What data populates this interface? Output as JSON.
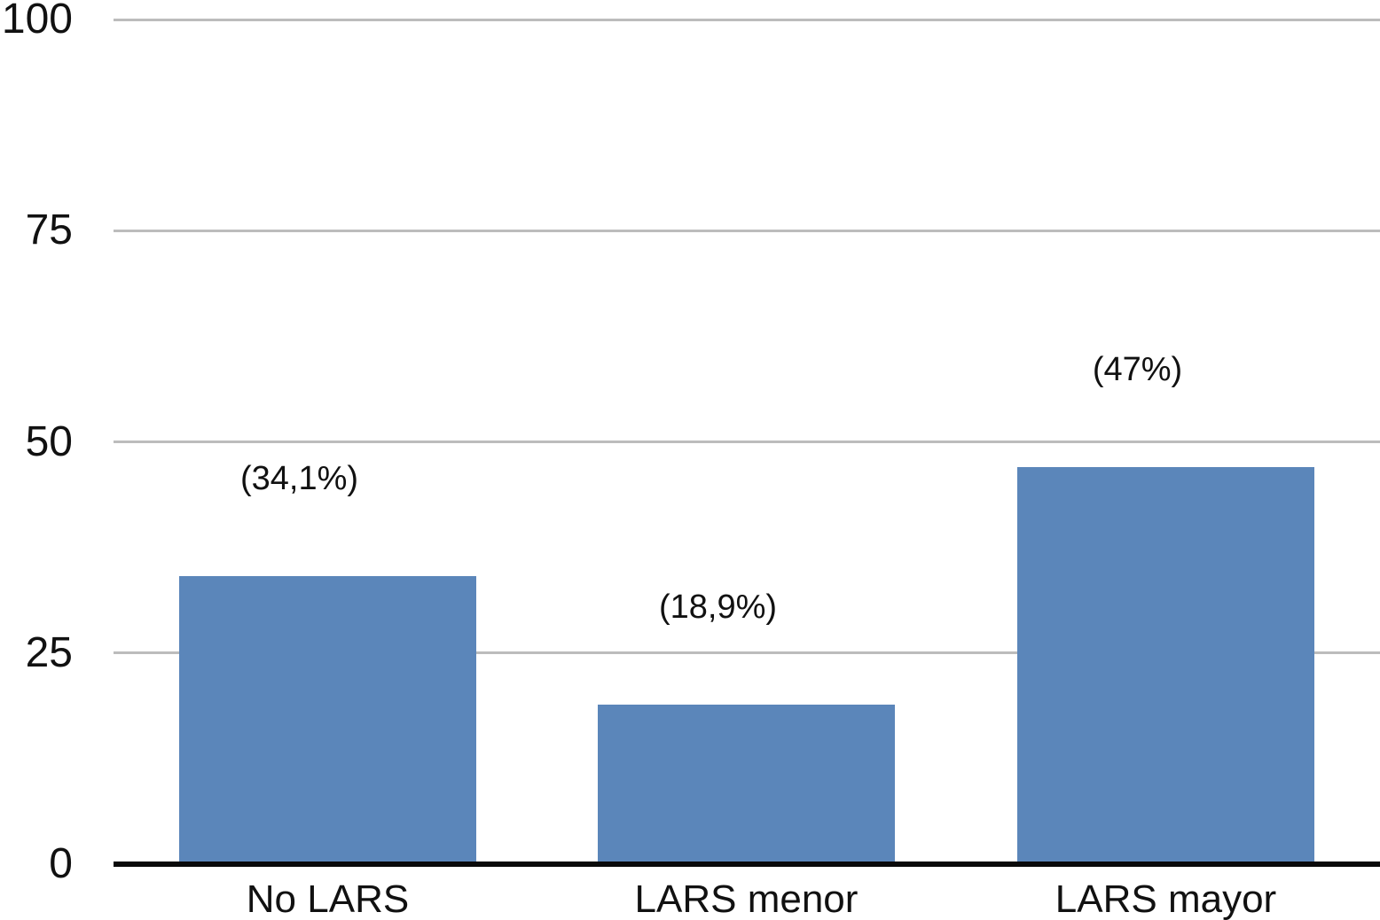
{
  "chart_data": {
    "type": "bar",
    "categories": [
      "No LARS",
      "LARS menor",
      "LARS mayor"
    ],
    "values": [
      34.1,
      18.9,
      47
    ],
    "data_labels": [
      "(34,1%)",
      "(18,9%)",
      "(47%)"
    ],
    "y_ticks": [
      0,
      25,
      50,
      75,
      100
    ],
    "ylim": [
      0,
      100
    ],
    "title": "",
    "xlabel": "",
    "ylabel": "",
    "grid": true,
    "legend": false,
    "bar_color": "#5b86ba",
    "gridline_color": "#bcbcbc",
    "axis_line_color": "#0a0a0a",
    "text_color": "#111111"
  }
}
